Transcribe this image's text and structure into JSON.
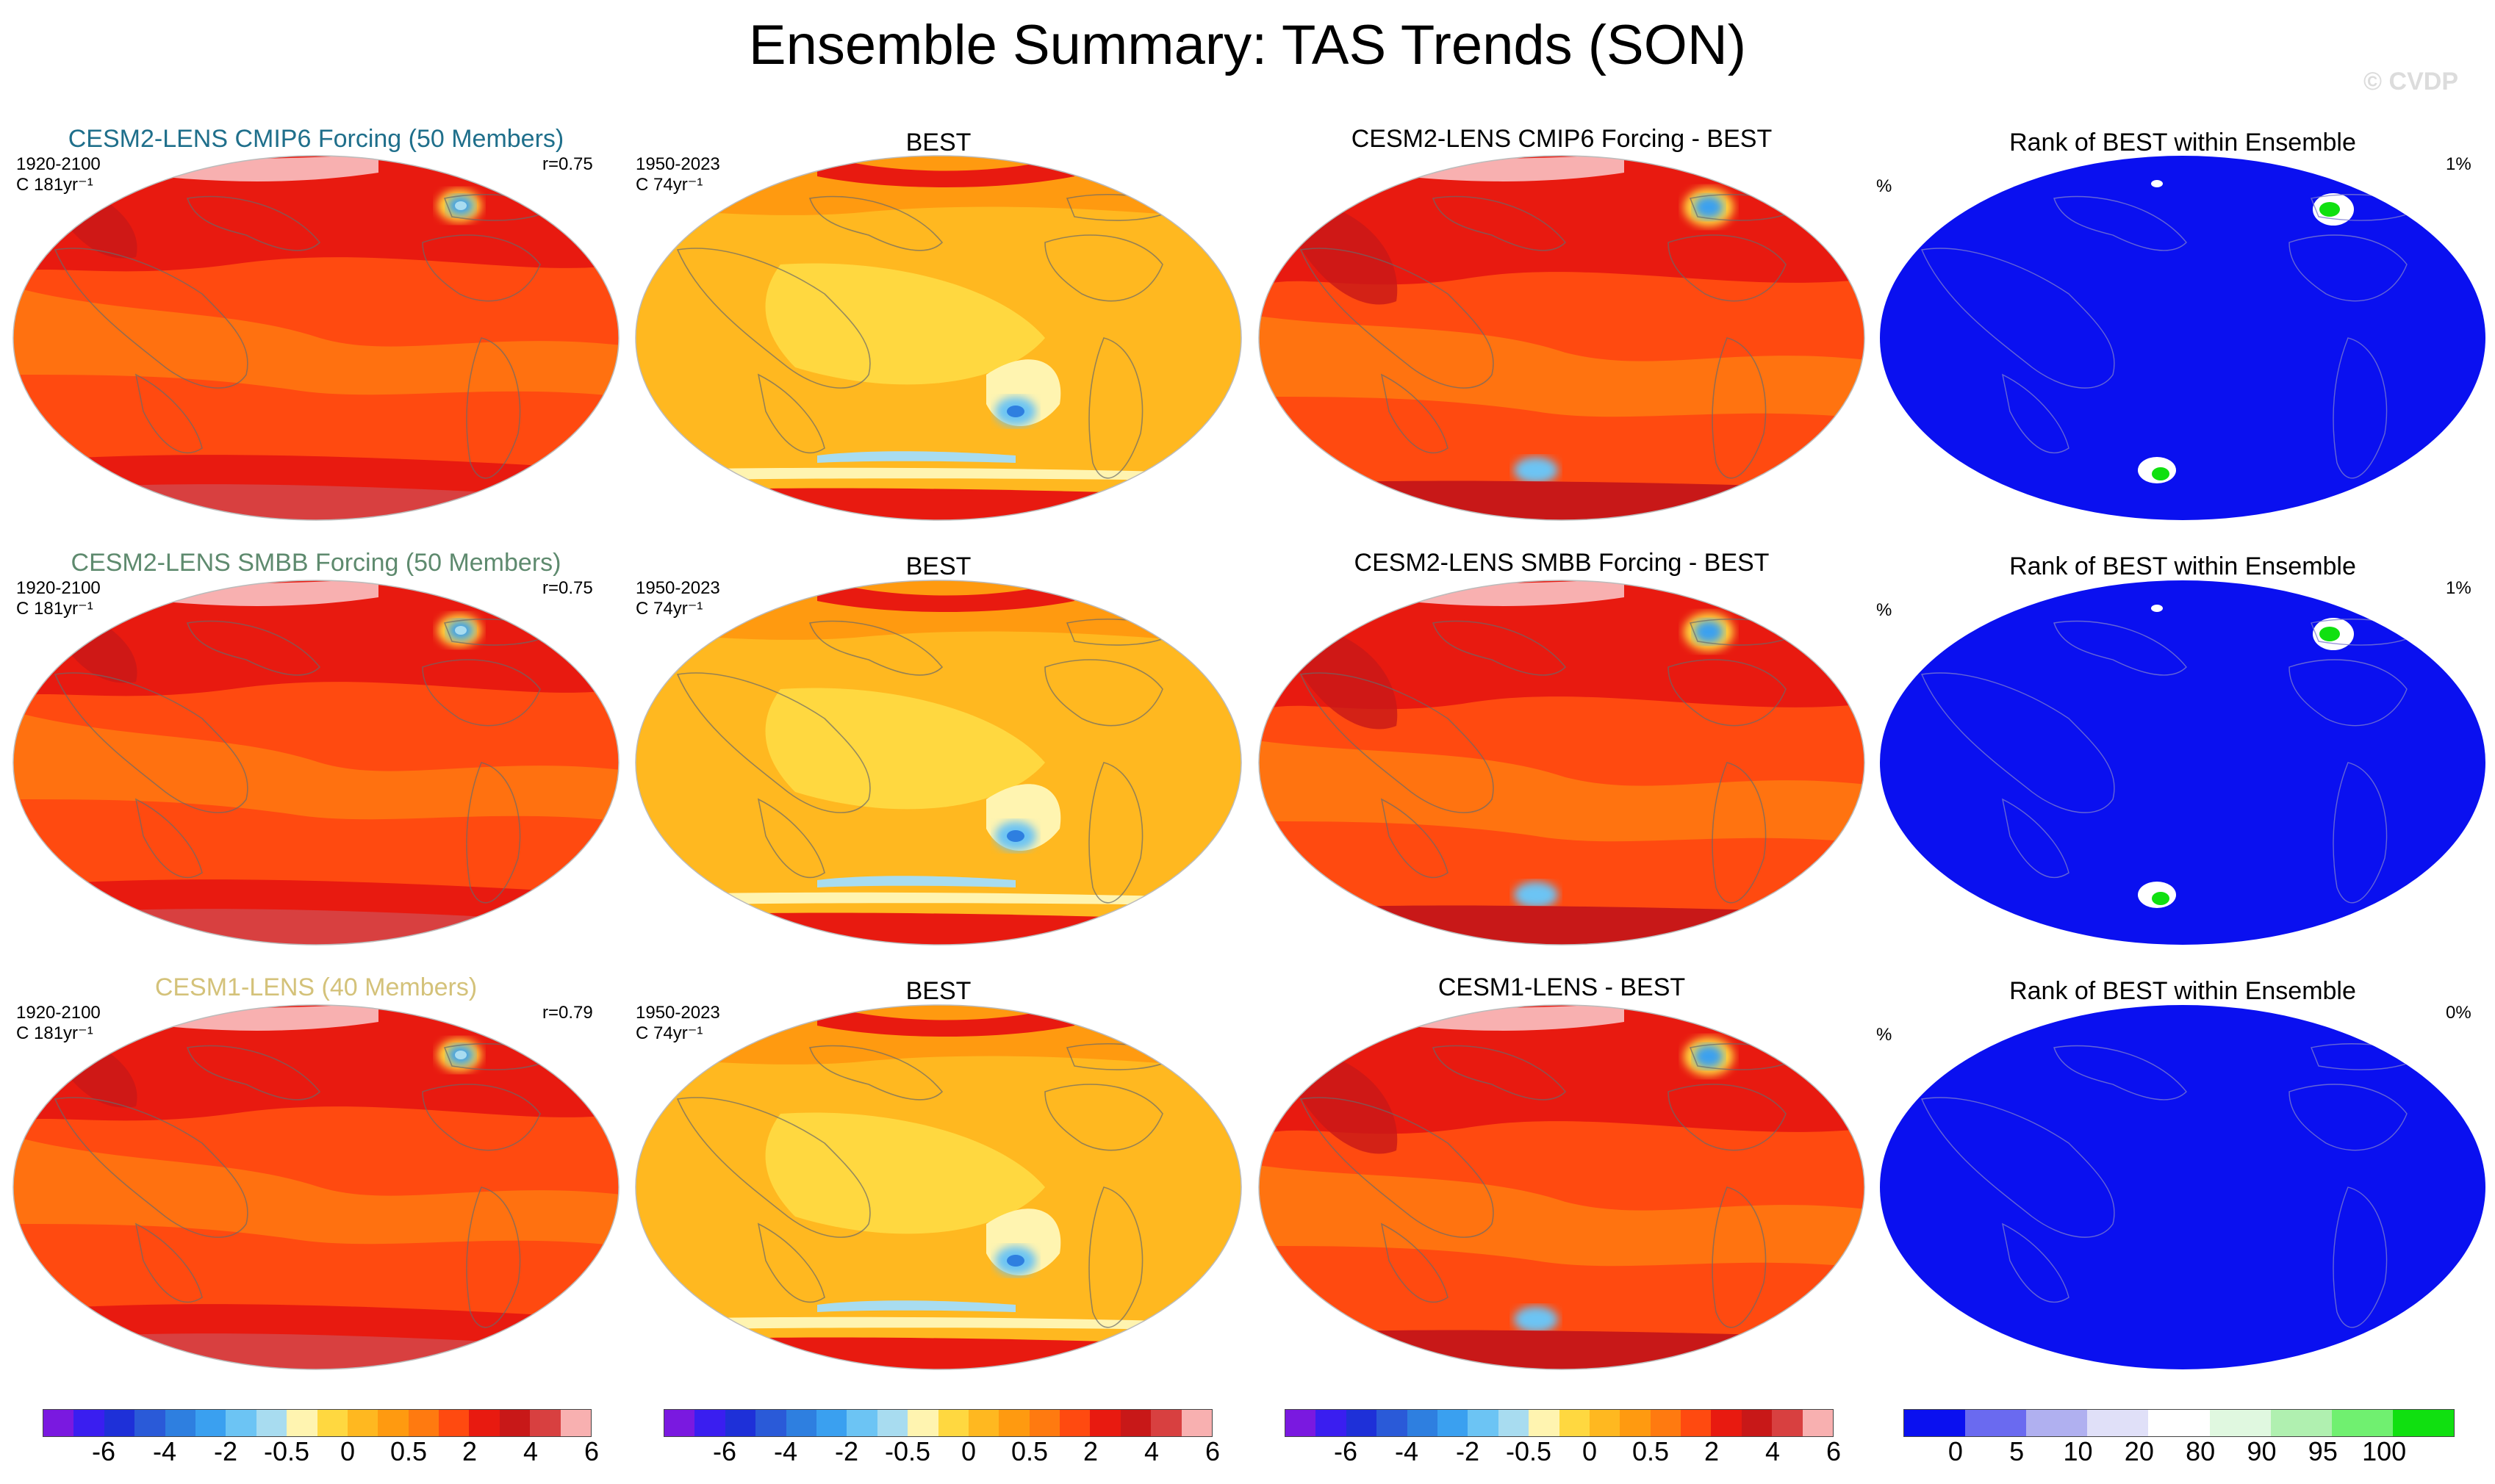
{
  "main_title": "Ensemble Summary: TAS Trends (SON)",
  "watermark": "© CVDP",
  "rows": [
    {
      "model_title": "CESM2-LENS CMIP6 Forcing (50 Members)",
      "model_color": "#1f6f8b",
      "model_period": "1920-2100",
      "model_units": "C 181yr⁻¹",
      "model_r": "r=0.75",
      "obs_title": "BEST",
      "obs_period": "1950-2023",
      "obs_units": "C 74yr⁻¹",
      "diff_title": "CESM2-LENS CMIP6 Forcing - BEST",
      "rank_title": "Rank of BEST within Ensemble",
      "rank_unit": "%",
      "rank_pct": "1%"
    },
    {
      "model_title": "CESM2-LENS SMBB Forcing (50 Members)",
      "model_color": "#5e8a6e",
      "model_period": "1920-2100",
      "model_units": "C 181yr⁻¹",
      "model_r": "r=0.75",
      "obs_title": "BEST",
      "obs_period": "1950-2023",
      "obs_units": "C 74yr⁻¹",
      "diff_title": "CESM2-LENS SMBB Forcing - BEST",
      "rank_title": "Rank of BEST within Ensemble",
      "rank_unit": "%",
      "rank_pct": "1%"
    },
    {
      "model_title": "CESM1-LENS (40 Members)",
      "model_color": "#d4c27a",
      "model_period": "1920-2100",
      "model_units": "C 181yr⁻¹",
      "model_r": "r=0.79",
      "obs_title": "BEST",
      "obs_period": "1950-2023",
      "obs_units": "C 74yr⁻¹",
      "diff_title": "CESM1-LENS - BEST",
      "rank_title": "Rank of BEST within Ensemble",
      "rank_unit": "%",
      "rank_pct": "0%"
    }
  ],
  "colorbars": {
    "trend_colors": [
      "#7a19e0",
      "#3a1ef0",
      "#1e30d8",
      "#2a5ad8",
      "#2e7fe0",
      "#3aa0f0",
      "#6cc4f4",
      "#a8dcf0",
      "#fff4b0",
      "#ffd840",
      "#ffb820",
      "#ff9a10",
      "#ff7a10",
      "#ff4a10",
      "#e81a10",
      "#c81818",
      "#d84040",
      "#f8b0b0"
    ],
    "trend_ticks": [
      "-6",
      "-4",
      "-2",
      "-0.5",
      "0",
      "0.5",
      "2",
      "4",
      "6"
    ],
    "rank_colors": [
      "#0a10f0",
      "#6a6af0",
      "#b0b0f0",
      "#e0e0f8",
      "#ffffff",
      "#e0f8e0",
      "#b0f0b0",
      "#70f070",
      "#10e010"
    ],
    "rank_ticks": [
      "0",
      "5",
      "10",
      "20",
      "80",
      "90",
      "95",
      "100"
    ]
  },
  "chart_data": [
    {
      "type": "heatmap",
      "panels": "model ensemble-mean trend maps (column 1)",
      "variable": "TAS trend",
      "units": "C per period",
      "levels": [
        -6,
        -4,
        -2,
        -0.5,
        0,
        0.5,
        2,
        4,
        6
      ],
      "dominant_range": "2 to 6+, with negative spot in North Atlantic"
    },
    {
      "type": "heatmap",
      "panels": "BEST observed trend maps (column 2)",
      "variable": "TAS trend",
      "units": "C 74yr⁻¹",
      "levels": [
        -6,
        -4,
        -2,
        -0.5,
        0,
        0.5,
        2,
        4,
        6
      ],
      "dominant_range": "0.5 to 2 over most ocean; negative patches near Antarctica"
    },
    {
      "type": "heatmap",
      "panels": "model minus BEST difference maps (column 3)",
      "variable": "TAS trend difference",
      "levels": [
        -6,
        -4,
        -2,
        -0.5,
        0,
        0.5,
        2,
        4,
        6
      ]
    },
    {
      "type": "heatmap",
      "panels": "Rank of BEST within Ensemble (column 4)",
      "units": "%",
      "levels": [
        0,
        5,
        10,
        20,
        80,
        90,
        95,
        100
      ],
      "dominant_range": "0-5 (blue) almost everywhere"
    }
  ]
}
